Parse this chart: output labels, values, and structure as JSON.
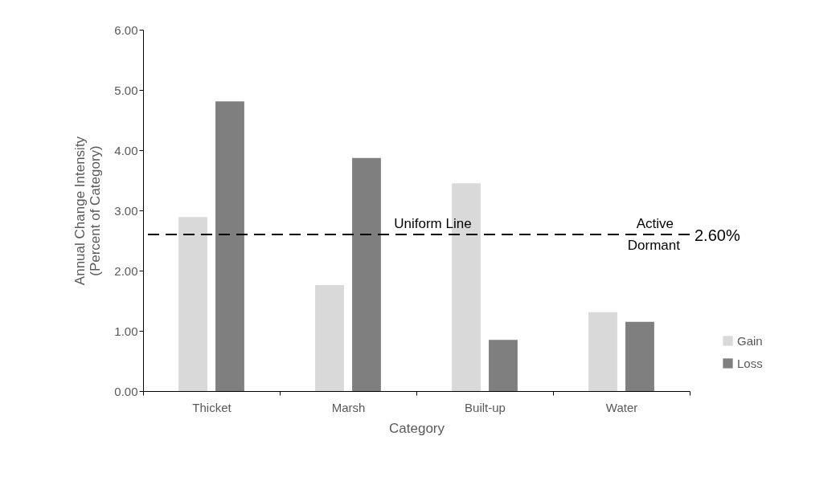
{
  "chart_data": {
    "type": "bar",
    "xlabel": "Category",
    "ylabel": "Annual Change Intensity\n(Percent of Category)",
    "categories": [
      "Thicket",
      "Marsh",
      "Built-up",
      "Water"
    ],
    "series": [
      {
        "name": "Gain",
        "color": "#d9d9d9",
        "values": [
          2.89,
          1.76,
          3.45,
          1.31
        ]
      },
      {
        "name": "Loss",
        "color": "#7f7f7f",
        "values": [
          4.81,
          3.87,
          0.85,
          1.15
        ]
      }
    ],
    "ylim": [
      0,
      6
    ],
    "yticks": [
      {
        "value": 0,
        "label": "0.00"
      },
      {
        "value": 1,
        "label": "1.00"
      },
      {
        "value": 2,
        "label": "2.00"
      },
      {
        "value": 3,
        "label": "3.00"
      },
      {
        "value": 4,
        "label": "4.00"
      },
      {
        "value": 5,
        "label": "5.00"
      },
      {
        "value": 6,
        "label": "6.00"
      }
    ],
    "ref_lines": [
      {
        "axis": "y",
        "value": 2.6,
        "label": "Uniform Line",
        "color": "#000000",
        "line_style": "dashed"
      }
    ],
    "annotations": [
      "Active",
      "Dormant",
      "2.60%"
    ],
    "grid": false,
    "legend": "right"
  }
}
